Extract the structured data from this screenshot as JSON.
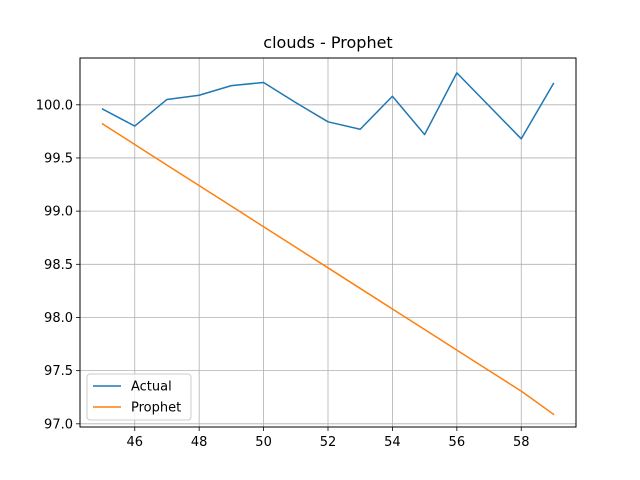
{
  "chart_data": {
    "type": "line",
    "title": "clouds - Prophet",
    "xlabel": "",
    "ylabel": "",
    "x": [
      45,
      46,
      47,
      48,
      49,
      50,
      51,
      52,
      53,
      54,
      55,
      56,
      57,
      58,
      59
    ],
    "series": [
      {
        "name": "Actual",
        "color": "#1f77b4",
        "values": [
          99.96,
          99.8,
          100.05,
          100.09,
          100.18,
          100.21,
          100.02,
          99.84,
          99.77,
          100.08,
          99.72,
          100.3,
          99.99,
          99.68,
          100.2
        ]
      },
      {
        "name": "Prophet",
        "color": "#ff7f0e",
        "values": [
          99.82,
          99.627,
          99.433,
          99.24,
          99.047,
          98.853,
          98.66,
          98.467,
          98.273,
          98.08,
          97.887,
          97.693,
          97.5,
          97.307,
          97.09
        ]
      }
    ],
    "xlim": [
      44.3,
      59.7
    ],
    "ylim": [
      96.97,
      100.44
    ],
    "xticks": [
      46,
      48,
      50,
      52,
      54,
      56,
      58
    ],
    "yticks": [
      97.0,
      97.5,
      98.0,
      98.5,
      99.0,
      99.5,
      100.0
    ],
    "xtick_labels": [
      "46",
      "48",
      "50",
      "52",
      "54",
      "56",
      "58"
    ],
    "ytick_labels": [
      "97.0",
      "97.5",
      "98.0",
      "98.5",
      "99.0",
      "99.5",
      "100.0"
    ],
    "grid": true,
    "legend_position": "lower-left"
  }
}
